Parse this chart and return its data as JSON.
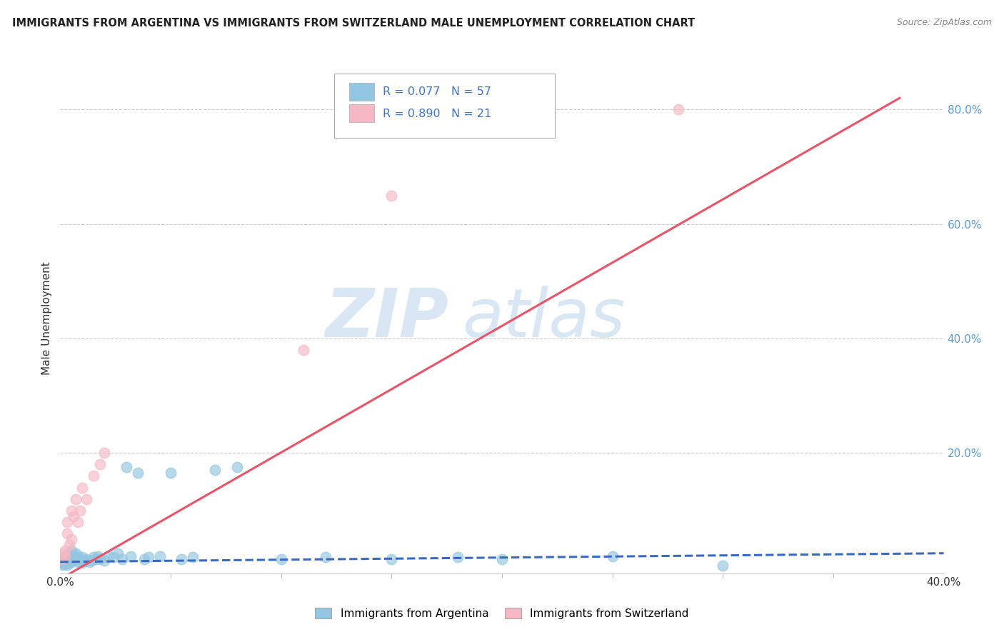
{
  "title": "IMMIGRANTS FROM ARGENTINA VS IMMIGRANTS FROM SWITZERLAND MALE UNEMPLOYMENT CORRELATION CHART",
  "source": "Source: ZipAtlas.com",
  "ylabel": "Male Unemployment",
  "xlim": [
    0,
    0.4
  ],
  "ylim": [
    -0.01,
    0.88
  ],
  "argentina_R": 0.077,
  "argentina_N": 57,
  "switzerland_R": 0.89,
  "switzerland_N": 21,
  "argentina_color": "#93c6e0",
  "switzerland_color": "#f5b8c4",
  "argentina_line_color": "#3a6abf",
  "switzerland_line_color": "#e8546a",
  "legend_label_argentina": "Immigrants from Argentina",
  "legend_label_switzerland": "Immigrants from Switzerland",
  "watermark_zip": "ZIP",
  "watermark_atlas": "atlas",
  "background_color": "#ffffff",
  "argentina_scatter_x": [
    0.001,
    0.001,
    0.001,
    0.002,
    0.002,
    0.002,
    0.002,
    0.003,
    0.003,
    0.003,
    0.003,
    0.004,
    0.004,
    0.004,
    0.005,
    0.005,
    0.005,
    0.006,
    0.006,
    0.007,
    0.007,
    0.008,
    0.008,
    0.009,
    0.01,
    0.01,
    0.011,
    0.012,
    0.013,
    0.014,
    0.015,
    0.016,
    0.017,
    0.018,
    0.02,
    0.022,
    0.024,
    0.026,
    0.028,
    0.03,
    0.032,
    0.035,
    0.038,
    0.04,
    0.045,
    0.05,
    0.055,
    0.06,
    0.07,
    0.08,
    0.1,
    0.12,
    0.15,
    0.18,
    0.2,
    0.25,
    0.3
  ],
  "argentina_scatter_y": [
    0.005,
    0.008,
    0.012,
    0.006,
    0.01,
    0.015,
    0.02,
    0.005,
    0.012,
    0.018,
    0.022,
    0.008,
    0.015,
    0.025,
    0.01,
    0.018,
    0.03,
    0.012,
    0.02,
    0.015,
    0.025,
    0.01,
    0.02,
    0.015,
    0.008,
    0.018,
    0.012,
    0.015,
    0.01,
    0.012,
    0.018,
    0.015,
    0.02,
    0.015,
    0.012,
    0.02,
    0.018,
    0.025,
    0.015,
    0.175,
    0.02,
    0.165,
    0.015,
    0.018,
    0.02,
    0.165,
    0.015,
    0.018,
    0.17,
    0.175,
    0.015,
    0.018,
    0.015,
    0.018,
    0.015,
    0.02,
    0.004
  ],
  "switzerland_scatter_x": [
    0.001,
    0.001,
    0.002,
    0.002,
    0.003,
    0.003,
    0.004,
    0.005,
    0.005,
    0.006,
    0.007,
    0.008,
    0.009,
    0.01,
    0.012,
    0.015,
    0.018,
    0.02,
    0.11,
    0.15,
    0.28
  ],
  "switzerland_scatter_y": [
    0.015,
    0.025,
    0.02,
    0.03,
    0.06,
    0.08,
    0.04,
    0.05,
    0.1,
    0.09,
    0.12,
    0.08,
    0.1,
    0.14,
    0.12,
    0.16,
    0.18,
    0.2,
    0.38,
    0.65,
    0.8
  ],
  "argentina_line_x": [
    0.0,
    0.4
  ],
  "argentina_line_y": [
    0.01,
    0.025
  ],
  "switzerland_line_x": [
    0.0,
    0.38
  ],
  "switzerland_line_y": [
    -0.02,
    0.82
  ]
}
